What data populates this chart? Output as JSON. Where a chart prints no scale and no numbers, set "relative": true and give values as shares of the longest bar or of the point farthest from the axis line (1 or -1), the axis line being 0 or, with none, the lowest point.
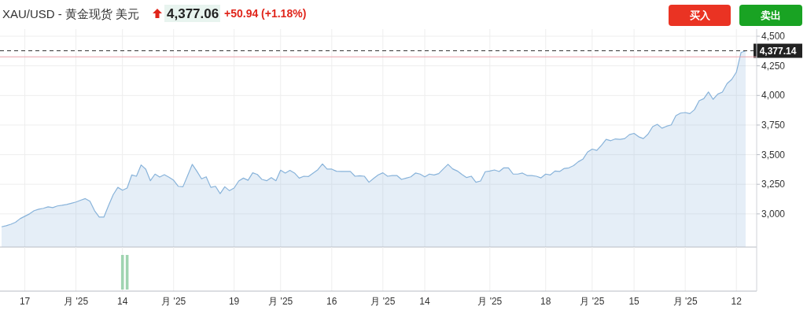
{
  "chart_data": [
    {
      "type": "area",
      "title": "XAU/USD - 黄金现货 美元",
      "annotations": [
        "4,377.06",
        "+50.94 (+1.18%)",
        "买入",
        "卖出"
      ],
      "categories": [
        null,
        null,
        null,
        null,
        null,
        null,
        null,
        null,
        null,
        null,
        null,
        null,
        null,
        null,
        null,
        null,
        null,
        null,
        null,
        null,
        null,
        null,
        null,
        null,
        null,
        null,
        null,
        null,
        null,
        null,
        null,
        null,
        null,
        null,
        null,
        null,
        null,
        null,
        null,
        null,
        null,
        null,
        null,
        null,
        null,
        null,
        null,
        null,
        null,
        null,
        null,
        null,
        null,
        null,
        null,
        null,
        null,
        null,
        null,
        null,
        null,
        null,
        null,
        null,
        null,
        null,
        null,
        null,
        null,
        null,
        null,
        null,
        null,
        null,
        null,
        null,
        null,
        null,
        null,
        null,
        null,
        null,
        null,
        null,
        null,
        null,
        null,
        null,
        null,
        null,
        null,
        null,
        null,
        null,
        null,
        null,
        null,
        null,
        null,
        null,
        null,
        null,
        null,
        null,
        null,
        null,
        null,
        null,
        null,
        null,
        null,
        null,
        null,
        null,
        null,
        null,
        null,
        null,
        null,
        null,
        null,
        null,
        null,
        null,
        null,
        null,
        null,
        null,
        null,
        null,
        null,
        null,
        null,
        null,
        null,
        null,
        null,
        null,
        null,
        null,
        null,
        null,
        null,
        null,
        null,
        null,
        null,
        null,
        null,
        null,
        null,
        null,
        null,
        null,
        null,
        null,
        null,
        null,
        null,
        null,
        null
      ],
      "values": [
        2891,
        2900,
        2913,
        2929,
        2960,
        2980,
        3000,
        3027,
        3040,
        3047,
        3060,
        3053,
        3067,
        3073,
        3080,
        3090,
        3100,
        3115,
        3129,
        3107,
        3027,
        2973,
        2973,
        3070,
        3162,
        3224,
        3200,
        3218,
        3329,
        3318,
        3413,
        3378,
        3280,
        3336,
        3311,
        3331,
        3310,
        3284,
        3233,
        3229,
        3323,
        3418,
        3360,
        3296,
        3313,
        3224,
        3233,
        3171,
        3229,
        3196,
        3218,
        3278,
        3302,
        3284,
        3347,
        3333,
        3291,
        3280,
        3307,
        3280,
        3369,
        3345,
        3367,
        3345,
        3302,
        3318,
        3316,
        3345,
        3373,
        3422,
        3378,
        3378,
        3360,
        3359,
        3358,
        3358,
        3318,
        3322,
        3318,
        3267,
        3300,
        3329,
        3347,
        3318,
        3324,
        3324,
        3291,
        3302,
        3313,
        3345,
        3336,
        3313,
        3336,
        3329,
        3340,
        3380,
        3418,
        3380,
        3362,
        3333,
        3307,
        3318,
        3267,
        3278,
        3356,
        3362,
        3371,
        3358,
        3389,
        3389,
        3336,
        3336,
        3345,
        3324,
        3324,
        3318,
        3304,
        3336,
        3329,
        3362,
        3358,
        3384,
        3389,
        3407,
        3440,
        3462,
        3522,
        3547,
        3536,
        3580,
        3629,
        3618,
        3633,
        3629,
        3636,
        3669,
        3680,
        3651,
        3636,
        3673,
        3736,
        3756,
        3724,
        3740,
        3751,
        3829,
        3851,
        3856,
        3847,
        3880,
        3956,
        3973,
        4029,
        3967,
        4011,
        4029,
        4100,
        4135,
        4196,
        4362,
        4377
      ],
      "color": "#88b3da",
      "ylim": [
        2720,
        4560
      ],
      "yticks": [
        {
          "value": 3000,
          "label": "3,000"
        },
        {
          "value": 3250,
          "label": "3,250"
        },
        {
          "value": 3500,
          "label": "3,500"
        },
        {
          "value": 3750,
          "label": "3,750"
        },
        {
          "value": 4000,
          "label": "4,000"
        },
        {
          "value": 4250,
          "label": "4,250"
        },
        {
          "value": 4500,
          "label": "4,500"
        }
      ],
      "ref_lines": [
        {
          "axis": "y",
          "value": 4377.14,
          "label": "4,377.14",
          "line_style": "dashed",
          "color": "#333333"
        },
        {
          "axis": "y",
          "value": 4326,
          "line_style": "solid",
          "color": "#e8a0a8"
        }
      ],
      "grid": true,
      "tick_labels": "y"
    },
    {
      "type": "bar",
      "relative": true,
      "color": "#9fd4b0",
      "grid": "x",
      "tick_labels": "x",
      "categories": [
        null,
        null,
        null,
        null,
        null,
        "17",
        null,
        null,
        null,
        null,
        null,
        null,
        null,
        null,
        null,
        null,
        "月 '25",
        null,
        null,
        null,
        null,
        null,
        null,
        null,
        null,
        null,
        "14",
        null,
        null,
        null,
        null,
        null,
        null,
        null,
        null,
        null,
        null,
        "月 '25",
        null,
        null,
        null,
        null,
        null,
        null,
        null,
        null,
        null,
        null,
        null,
        null,
        "19",
        null,
        null,
        null,
        null,
        null,
        null,
        null,
        null,
        null,
        "月 '25",
        null,
        null,
        null,
        null,
        null,
        null,
        null,
        null,
        null,
        null,
        "16",
        null,
        null,
        null,
        null,
        null,
        null,
        null,
        null,
        null,
        null,
        "月 '25",
        null,
        null,
        null,
        null,
        null,
        null,
        null,
        null,
        "14",
        null,
        null,
        null,
        null,
        null,
        null,
        null,
        null,
        null,
        null,
        null,
        null,
        null,
        "月 '25",
        null,
        null,
        null,
        null,
        null,
        null,
        null,
        null,
        null,
        null,
        null,
        "18",
        null,
        null,
        null,
        null,
        null,
        null,
        null,
        null,
        null,
        "月 '25",
        null,
        null,
        null,
        null,
        null,
        null,
        null,
        null,
        "15",
        null,
        null,
        null,
        null,
        null,
        null,
        null,
        null,
        null,
        null,
        "月 '25",
        null,
        null,
        null,
        null,
        null,
        null,
        null,
        null,
        null,
        null,
        "12",
        null,
        null
      ],
      "values": [
        null,
        null,
        null,
        null,
        null,
        null,
        null,
        null,
        null,
        null,
        null,
        null,
        null,
        null,
        null,
        null,
        null,
        null,
        null,
        null,
        null,
        null,
        null,
        null,
        null,
        null,
        1,
        1,
        null,
        null,
        null,
        null,
        null,
        null,
        null,
        null,
        null,
        null,
        null,
        null,
        null,
        null,
        null,
        null,
        null,
        null,
        null,
        null,
        null,
        null,
        null,
        null,
        null,
        null,
        null,
        null,
        null,
        null,
        null,
        null,
        null,
        null,
        null,
        null,
        null,
        null,
        null,
        null,
        null,
        null,
        null,
        null,
        null,
        null,
        null,
        null,
        null,
        null,
        null,
        null,
        null,
        null,
        null,
        null,
        null,
        null,
        null,
        null,
        null,
        null,
        null,
        null,
        null,
        null,
        null,
        null,
        null,
        null,
        null,
        null,
        null,
        null,
        null,
        null,
        null,
        null,
        null,
        null,
        null,
        null,
        null,
        null,
        null,
        null,
        null,
        null,
        null,
        null,
        null,
        null,
        null,
        null,
        null,
        null,
        null,
        null,
        null,
        null,
        null,
        null,
        null,
        null,
        null,
        null,
        null,
        null,
        null,
        null,
        null,
        null,
        null,
        null,
        null,
        null,
        null,
        null,
        null,
        null,
        null,
        null,
        null,
        null,
        null,
        null,
        null,
        null,
        null,
        null,
        null,
        null,
        null
      ]
    }
  ]
}
